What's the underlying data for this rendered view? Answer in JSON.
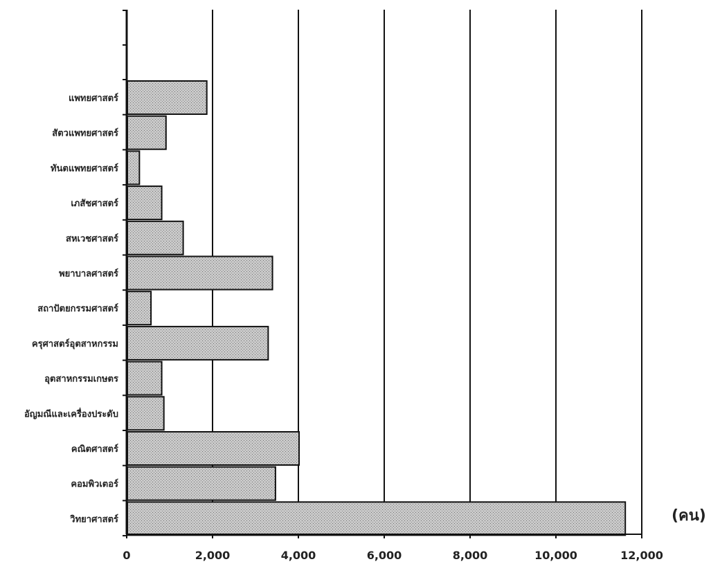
{
  "chart_data": {
    "type": "bar",
    "orientation": "horizontal",
    "categories": [
      "วิทยาศาสตร์",
      "คอมพิวเตอร์",
      "คณิตศาสตร์",
      "อัญมณีและเครื่องประดับ",
      "อุตสาหกรรมเกษตร",
      "ครุศาสตร์อุตสาหกรรม",
      "สถาปัตยกรรมศาสตร์",
      "พยาบาลศาสตร์",
      "สหเวชศาสตร์",
      "เภสัชศาสตร์",
      "ทันตแพทยศาสตร์",
      "สัตวแพทยศาสตร์",
      "แพทยศาสตร์"
    ],
    "values": [
      11600,
      3450,
      4000,
      850,
      800,
      3280,
      550,
      3380,
      1300,
      800,
      280,
      900,
      1850
    ],
    "xlabel": "(คน)",
    "xlim": [
      0,
      12000
    ],
    "xticks": [
      "0",
      "2,000",
      "4,000",
      "6,000",
      "8,000",
      "10,000",
      "12,000"
    ],
    "grid": true,
    "bar_color": "#bdbdbd",
    "grid_color": "#111111"
  }
}
